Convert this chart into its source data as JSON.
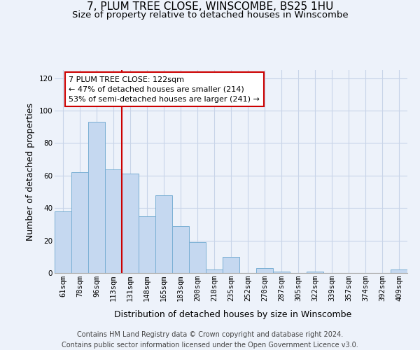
{
  "title": "7, PLUM TREE CLOSE, WINSCOMBE, BS25 1HU",
  "subtitle": "Size of property relative to detached houses in Winscombe",
  "xlabel": "Distribution of detached houses by size in Winscombe",
  "ylabel": "Number of detached properties",
  "categories": [
    "61sqm",
    "78sqm",
    "96sqm",
    "113sqm",
    "131sqm",
    "148sqm",
    "165sqm",
    "183sqm",
    "200sqm",
    "218sqm",
    "235sqm",
    "252sqm",
    "270sqm",
    "287sqm",
    "305sqm",
    "322sqm",
    "339sqm",
    "357sqm",
    "374sqm",
    "392sqm",
    "409sqm"
  ],
  "values": [
    38,
    62,
    93,
    64,
    61,
    35,
    48,
    29,
    19,
    2,
    10,
    0,
    3,
    1,
    0,
    1,
    0,
    0,
    0,
    0,
    2
  ],
  "bar_color": "#c5d8f0",
  "bar_edge_color": "#7aafd4",
  "ylim": [
    0,
    125
  ],
  "yticks": [
    0,
    20,
    40,
    60,
    80,
    100,
    120
  ],
  "vline_color": "#cc0000",
  "annotation_box_text": "7 PLUM TREE CLOSE: 122sqm\n← 47% of detached houses are smaller (214)\n53% of semi-detached houses are larger (241) →",
  "annotation_box_color": "#ffffff",
  "annotation_box_edge_color": "#cc0000",
  "footer_line1": "Contains HM Land Registry data © Crown copyright and database right 2024.",
  "footer_line2": "Contains public sector information licensed under the Open Government Licence v3.0.",
  "background_color": "#edf2fa",
  "grid_color": "#c8d4e8",
  "title_fontsize": 11,
  "subtitle_fontsize": 9.5,
  "axis_label_fontsize": 9,
  "tick_fontsize": 7.5,
  "footer_fontsize": 7,
  "annotation_fontsize": 8
}
